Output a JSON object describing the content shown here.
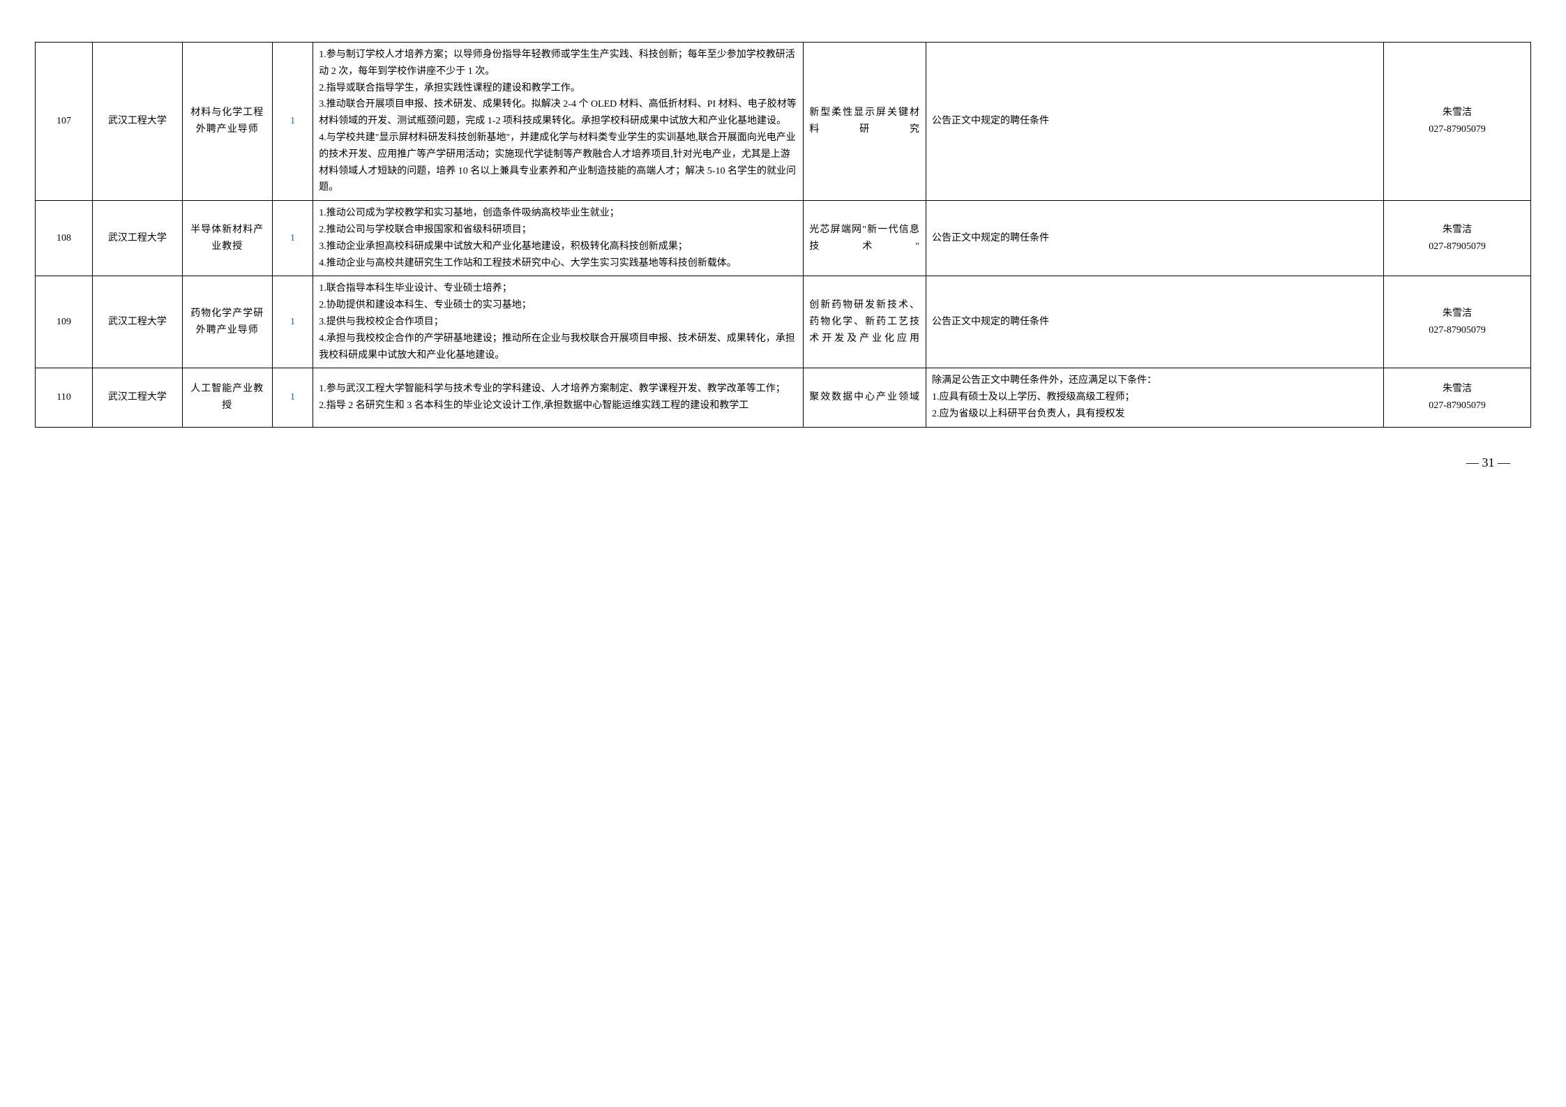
{
  "colors": {
    "border": "#000000",
    "text": "#000000",
    "count_text": "#0066cc",
    "background": "#ffffff"
  },
  "typography": {
    "font_family": "SimSun",
    "cell_fontsize": 14,
    "line_height": 1.7,
    "page_num_fontsize": 18
  },
  "column_widths_pct": [
    3.5,
    5.5,
    5.5,
    2.5,
    30,
    7.5,
    28,
    9
  ],
  "rows": [
    {
      "num": "107",
      "university": "武汉工程大学",
      "position": "材料与化学工程外聘产业导师",
      "count": "1",
      "description": "1.参与制订学校人才培养方案；以导师身份指导年轻教师或学生生产实践、科技创新；每年至少参加学校教研活动 2 次，每年到学校作讲座不少于 1 次。\n2.指导或联合指导学生，承担实践性课程的建设和教学工作。\n3.推动联合开展项目申报、技术研发、成果转化。拟解决 2-4 个 OLED 材料、高低折材料、PI 材料、电子胶材等材料领域的开发、测试瓶颈问题，完成 1-2 项科技成果转化。承担学校科研成果中试放大和产业化基地建设。\n4.与学校共建\"显示屏材料研发科技创新基地\"，并建成化学与材料类专业学生的实训基地,联合开展面向光电产业的技术开发、应用推广等产学研用活动；实施现代学徒制等产教融合人才培养项目,针对光电产业，尤其是上游材料领域人才短缺的问题，培养 10 名以上兼具专业素养和产业制造技能的高端人才；解决 5-10 名学生的就业问题。",
      "field": "新型柔性显示屏关键材料研究",
      "requirements": "公告正文中规定的聘任条件",
      "contact": "朱雪洁\n027-87905079"
    },
    {
      "num": "108",
      "university": "武汉工程大学",
      "position": "半导体新材料产业教授",
      "count": "1",
      "description": "1.推动公司成为学校教学和实习基地，创造条件吸纳高校毕业生就业；\n2.推动公司与学校联合申报国家和省级科研项目；\n3.推动企业承担高校科研成果中试放大和产业化基地建设，积极转化高科技创新成果；\n4.推动企业与高校共建研究生工作站和工程技术研究中心、大学生实习实践基地等科技创新载体。",
      "field": "光芯屏端网\"新一代信息技术\"",
      "requirements": "公告正文中规定的聘任条件",
      "contact": "朱雪洁\n027-87905079"
    },
    {
      "num": "109",
      "university": "武汉工程大学",
      "position": "药物化学产学研外聘产业导师",
      "count": "1",
      "description": "1.联合指导本科生毕业设计、专业硕士培养；\n2.协助提供和建设本科生、专业硕士的实习基地；\n3.提供与我校校企合作项目；\n4.承担与我校校企合作的产学研基地建设；推动所在企业与我校联合开展项目申报、技术研发、成果转化，承担我校科研成果中试放大和产业化基地建设。",
      "field": "创新药物研发新技术、药物化学、新药工艺技术开发及产业化应用",
      "requirements": "公告正文中规定的聘任条件",
      "contact": "朱雪洁\n027-87905079"
    },
    {
      "num": "110",
      "university": "武汉工程大学",
      "position": "人工智能产业教授",
      "count": "1",
      "description": "1.参与武汉工程大学智能科学与技术专业的学科建设、人才培养方案制定、教学课程开发、教学改革等工作；\n2.指导 2 名研究生和 3 名本科生的毕业论文设计工作,承担数据中心智能运维实践工程的建设和教学工",
      "field": "聚效数据中心产业领域",
      "requirements": "除满足公告正文中聘任条件外，还应满足以下条件：\n1.应具有硕士及以上学历、教授级高级工程师；\n2.应为省级以上科研平台负责人，具有授权发",
      "contact": "朱雪洁\n027-87905079"
    }
  ],
  "page_number": "— 31 —"
}
